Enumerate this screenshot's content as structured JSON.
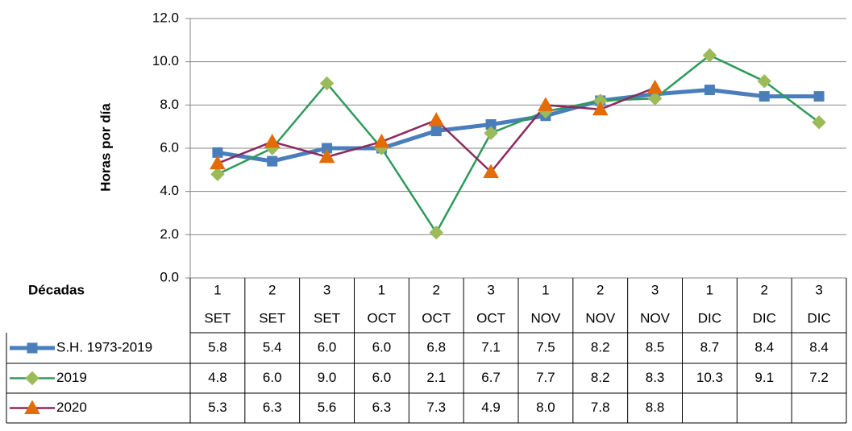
{
  "chart_data": {
    "type": "line",
    "y_label": "Horas por día",
    "x_label": "Décadas",
    "categories": [
      "1",
      "2",
      "3",
      "1",
      "2",
      "3",
      "1",
      "2",
      "3",
      "1",
      "2",
      "3"
    ],
    "groups": [
      "SET",
      "SET",
      "SET",
      "OCT",
      "OCT",
      "OCT",
      "NOV",
      "NOV",
      "NOV",
      "DIC",
      "DIC",
      "DIC"
    ],
    "ylim": [
      0,
      12
    ],
    "yticks": [
      {
        "value": 0,
        "label": "0.0"
      },
      {
        "value": 2,
        "label": "2.0"
      },
      {
        "value": 4,
        "label": "4.0"
      },
      {
        "value": 6,
        "label": "6.0"
      },
      {
        "value": 8,
        "label": "8.0"
      },
      {
        "value": 10,
        "label": "10.0"
      },
      {
        "value": 12,
        "label": "12.0"
      }
    ],
    "grid": true,
    "series": [
      {
        "name": "S.H. 1973-2019",
        "color": "#4a7ebb",
        "marker_color": "#4a7ebb",
        "marker": "square",
        "values": [
          5.8,
          5.4,
          6.0,
          6.0,
          6.8,
          7.1,
          7.5,
          8.2,
          8.5,
          8.7,
          8.4,
          8.4
        ],
        "value_labels": [
          "5.8",
          "5.4",
          "6.0",
          "6.0",
          "6.8",
          "7.1",
          "7.5",
          "8.2",
          "8.5",
          "8.7",
          "8.4",
          "8.4"
        ]
      },
      {
        "name": "2019",
        "color": "#2e9a5a",
        "marker_color": "#9bbb59",
        "marker": "diamond",
        "values": [
          4.8,
          6.0,
          9.0,
          6.0,
          2.1,
          6.7,
          7.7,
          8.2,
          8.3,
          10.3,
          9.1,
          7.2
        ],
        "value_labels": [
          "4.8",
          "6.0",
          "9.0",
          "6.0",
          "2.1",
          "6.7",
          "7.7",
          "8.2",
          "8.3",
          "10.3",
          "9.1",
          "7.2"
        ]
      },
      {
        "name": "2020",
        "color": "#8b2a5e",
        "marker_color": "#e36c09",
        "marker": "triangle",
        "values": [
          5.3,
          6.3,
          5.6,
          6.3,
          7.3,
          4.9,
          8.0,
          7.8,
          8.8,
          null,
          null,
          null
        ],
        "value_labels": [
          "5.3",
          "6.3",
          "5.6",
          "6.3",
          "7.3",
          "4.9",
          "8.0",
          "7.8",
          "8.8",
          null,
          null,
          null
        ]
      }
    ]
  }
}
